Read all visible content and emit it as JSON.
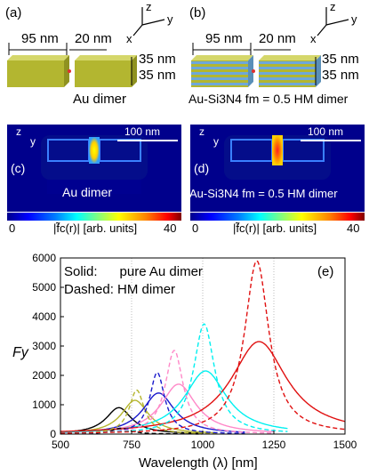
{
  "panel_a": {
    "letter": "(a)",
    "dim_length": "95 nm",
    "dim_gap": "20 nm",
    "dim_h1": "35 nm",
    "dim_h2": "35 nm",
    "caption": "Au dimer",
    "axes": {
      "z": "z",
      "y": "y",
      "x": "x"
    },
    "color": "#b3b630"
  },
  "panel_b": {
    "letter": "(b)",
    "dim_length": "95 nm",
    "dim_gap": "20 nm",
    "dim_h1": "35 nm",
    "dim_h2": "35 nm",
    "caption": "Au-Si3N4 fm = 0.5 HM dimer",
    "axes": {
      "z": "z",
      "y": "y",
      "x": "x"
    }
  },
  "panel_c": {
    "letter": "(c)",
    "scale_bar": "100 nm",
    "caption": "Au dimer",
    "axes": {
      "z": "z",
      "y": "y"
    }
  },
  "panel_d": {
    "letter": "(d)",
    "scale_bar": "100 nm",
    "caption": "Au-Si3N4 fm = 0.5 HM dimer",
    "axes": {
      "z": "z",
      "y": "y"
    }
  },
  "colorbar": {
    "min": "0",
    "max": "40",
    "label": "|f̃c(r)| [arb. units]"
  },
  "chart_data": {
    "type": "line",
    "letter": "(e)",
    "xlabel": "Wavelength (λ) [nm]",
    "ylabel": "Fy",
    "xlim": [
      500,
      1500
    ],
    "ylim": [
      0,
      6000
    ],
    "xticks": [
      500,
      750,
      1000,
      1250,
      1500
    ],
    "yticks": [
      0,
      1000,
      2000,
      3000,
      4000,
      5000,
      6000
    ],
    "grid": "dotted vertical at 750, 1000, 1250",
    "legend": [
      "Solid:      pure Au dimer",
      "Dashed: HM dimer"
    ],
    "series": [
      {
        "style": "solid",
        "color": "#000000",
        "peak_x": 705,
        "peak_y": 900,
        "width": 55,
        "x_end": 1000
      },
      {
        "style": "solid",
        "color": "#b5b52e",
        "peak_x": 762,
        "peak_y": 1150,
        "width": 58,
        "x_end": 1050
      },
      {
        "style": "solid",
        "color": "#1a1acc",
        "peak_x": 845,
        "peak_y": 1400,
        "width": 68,
        "x_end": 1150
      },
      {
        "style": "solid",
        "color": "#ff88c8",
        "peak_x": 915,
        "peak_y": 1700,
        "width": 75,
        "x_end": 1250
      },
      {
        "style": "solid",
        "color": "#00f0f0",
        "peak_x": 1010,
        "peak_y": 2150,
        "width": 90,
        "x_end": 1300
      },
      {
        "style": "solid",
        "color": "#e01010",
        "peak_x": 1198,
        "peak_y": 3150,
        "width": 120,
        "x_end": 1500
      },
      {
        "style": "dashed",
        "color": "#000000",
        "peak_x": 712,
        "peak_y": 200,
        "width": 40,
        "x_end": 1000
      },
      {
        "style": "dashed",
        "color": "#b5b52e",
        "peak_x": 768,
        "peak_y": 1500,
        "width": 32,
        "x_end": 1050
      },
      {
        "style": "dashed",
        "color": "#1a1acc",
        "peak_x": 840,
        "peak_y": 2100,
        "width": 32,
        "x_end": 1150
      },
      {
        "style": "dashed",
        "color": "#ff88c8",
        "peak_x": 900,
        "peak_y": 2850,
        "width": 38,
        "x_end": 1250
      },
      {
        "style": "dashed",
        "color": "#00f0f0",
        "peak_x": 1005,
        "peak_y": 3750,
        "width": 45,
        "x_end": 1300
      },
      {
        "style": "dashed",
        "color": "#e01010",
        "peak_x": 1190,
        "peak_y": 5900,
        "width": 52,
        "x_end": 1500
      }
    ]
  }
}
